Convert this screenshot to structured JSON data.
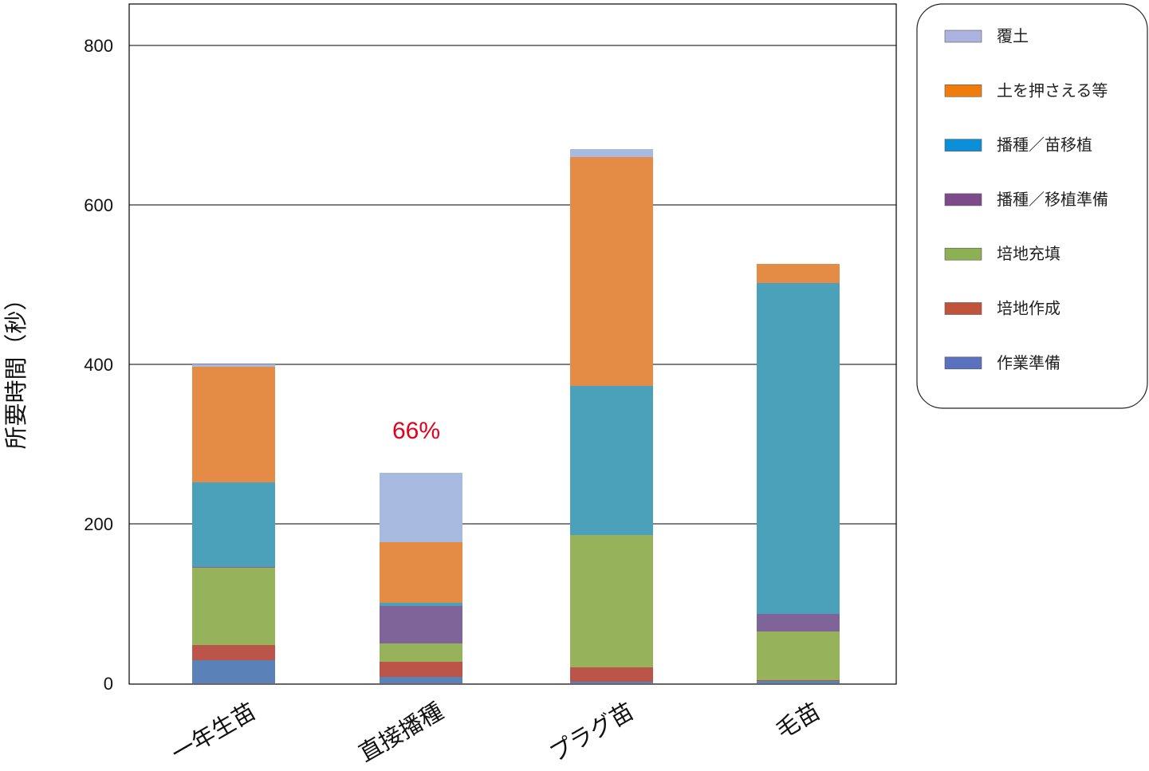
{
  "chart_data": {
    "type": "bar",
    "stacked": true,
    "categories": [
      "一年生苗",
      "直接播種",
      "プラグ苗",
      "毛苗"
    ],
    "xlabel": "",
    "ylabel": "所要時間（秒）",
    "ylim": [
      0,
      852
    ],
    "yticks": [
      0,
      200,
      400,
      600,
      800
    ],
    "grid": true,
    "legend": "right",
    "series": [
      {
        "name": "作業準備",
        "color": "#5a82b9",
        "legend_color": "#5a72bd",
        "values": [
          29,
          8,
          2,
          3
        ]
      },
      {
        "name": "培地作成",
        "color": "#bb5449",
        "legend_color": "#c0533c",
        "values": [
          19,
          19,
          18,
          1
        ]
      },
      {
        "name": "培地充填",
        "color": "#96b35c",
        "legend_color": "#8db054",
        "values": [
          97,
          23,
          166,
          61
        ]
      },
      {
        "name": "播種／移植準備",
        "color": "#7e6499",
        "legend_color": "#7d4b8b",
        "values": [
          1,
          47,
          0,
          22
        ]
      },
      {
        "name": "播種／苗移植",
        "color": "#4aa1b9",
        "legend_color": "#0b8fd8",
        "values": [
          106,
          4,
          187,
          415
        ]
      },
      {
        "name": "土を押さえる等",
        "color": "#e48b45",
        "legend_color": "#f07c0c",
        "values": [
          145,
          76,
          287,
          24
        ]
      },
      {
        "name": "覆土",
        "color": "#a8badf",
        "legend_color": "#adb3e1",
        "values": [
          3,
          87,
          10,
          0
        ]
      }
    ],
    "annotations": [
      {
        "text": "66%",
        "category": "直接播種",
        "color": "#e2001c"
      }
    ]
  }
}
